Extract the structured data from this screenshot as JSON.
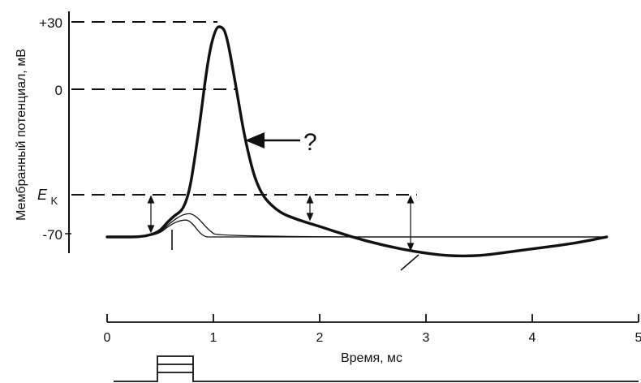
{
  "chart_data": {
    "type": "line",
    "xlabel": "Время, мс",
    "ylabel": "Мембранный потенциал, мВ",
    "xlim": [
      0,
      5
    ],
    "x_ticks": [
      "0",
      "1",
      "2",
      "3",
      "4",
      "5"
    ],
    "y_tick_labels": [
      "+30",
      "0",
      "-70"
    ],
    "ek_label": {
      "main": "E",
      "sub": "K"
    },
    "annotation": "?",
    "colors": {
      "ink": "#111111",
      "background": "#ffffff"
    },
    "series": [
      {
        "x": [
          0,
          0.45,
          0.6,
          0.75,
          0.85,
          0.95,
          1.02,
          1.07,
          1.12,
          1.2,
          1.3,
          1.42,
          1.6,
          1.8,
          2.0,
          2.3,
          2.6,
          2.9,
          3.2,
          3.5,
          3.8,
          4.1,
          4.4,
          4.7
        ],
        "y": [
          -70,
          -70,
          -61,
          -56,
          -25,
          15,
          29,
          30,
          27,
          5,
          -25,
          -48,
          -58,
          -62,
          -65,
          -70,
          -74,
          -77,
          -79,
          -79,
          -77,
          -75,
          -73,
          -70
        ]
      },
      {
        "x": [
          0,
          0.45,
          0.6,
          0.7,
          0.78,
          0.9,
          1.0,
          4.7
        ],
        "y": [
          -70,
          -70,
          -64,
          -62,
          -62,
          -70,
          -70,
          -70
        ]
      },
      {
        "x": [
          0,
          0.45,
          0.6,
          0.72,
          0.82,
          0.96,
          1.05,
          4.7
        ],
        "y": [
          -70,
          -70,
          -63,
          -59,
          -59,
          -67,
          -70,
          -70
        ]
      }
    ]
  }
}
